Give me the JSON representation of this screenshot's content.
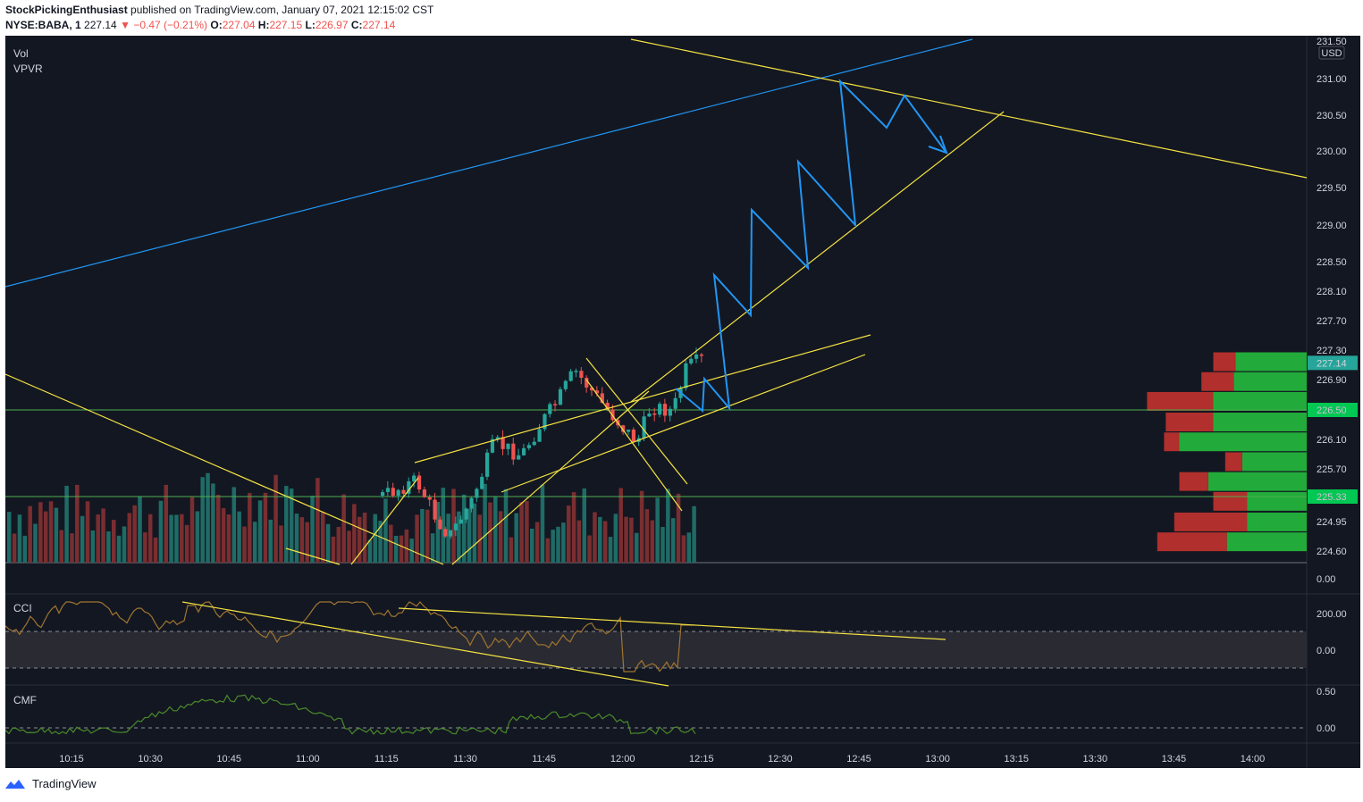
{
  "header": {
    "author": "StockPickingEnthusiast",
    "published": "published on TradingView.com, January 07, 2021 12:15:02 CST",
    "symbol": "NYSE:BABA, 1",
    "last": "227.14",
    "change": "−0.47 (−0.21%)",
    "o_label": "O:",
    "o": "227.04",
    "h_label": "H:",
    "h": "227.15",
    "l_label": "L:",
    "l": "226.97",
    "c_label": "C:",
    "c": "227.14"
  },
  "indicators": {
    "vol": "Vol",
    "vpvr": "VPVR",
    "cci": "CCI",
    "cmf": "CMF"
  },
  "currency": "USD",
  "footer": {
    "brand": "TradingView"
  },
  "colors": {
    "background": "#131722",
    "up": "#26a69a",
    "down": "#ef5350",
    "trend_yellow": "#f5e342",
    "trend_blue": "#2196f3",
    "level_green": "#4caf50",
    "cci_line": "#a07530",
    "cmf_line": "#4a8a2a"
  },
  "chart_data": [
    {
      "type": "candlestick",
      "x_ticks": [
        "10:15",
        "10:30",
        "10:45",
        "11:00",
        "11:15",
        "11:30",
        "11:45",
        "12:00",
        "12:15",
        "12:30",
        "12:45",
        "13:00",
        "13:15",
        "13:30",
        "13:45",
        "14:00"
      ],
      "y_ticks": [
        "231.50",
        "231.00",
        "230.50",
        "230.00",
        "229.50",
        "229.00",
        "228.50",
        "228.10",
        "227.70",
        "227.30",
        "226.90",
        "226.50",
        "226.10",
        "225.70",
        "225.33",
        "224.95",
        "224.60",
        "0.00"
      ],
      "last_price_label": "227.14",
      "horizontal_levels": [
        226.5,
        225.33
      ],
      "vpvr_rows": [
        {
          "price": 227.15,
          "up": 0.42,
          "down": 0.13
        },
        {
          "price": 226.88,
          "up": 0.43,
          "down": 0.19
        },
        {
          "price": 226.61,
          "up": 0.55,
          "down": 0.39
        },
        {
          "price": 226.33,
          "up": 0.55,
          "down": 0.28
        },
        {
          "price": 226.06,
          "up": 0.75,
          "down": 0.09
        },
        {
          "price": 225.79,
          "up": 0.38,
          "down": 0.1
        },
        {
          "price": 225.52,
          "up": 0.58,
          "down": 0.17
        },
        {
          "price": 225.25,
          "up": 0.35,
          "down": 0.2
        },
        {
          "price": 224.97,
          "up": 0.35,
          "down": 0.43
        },
        {
          "price": 224.7,
          "up": 0.47,
          "down": 0.41
        }
      ]
    },
    {
      "type": "line",
      "name": "CCI",
      "y_ticks": [
        "200.00",
        "0.00"
      ],
      "bands": [
        100,
        -100
      ]
    },
    {
      "type": "line",
      "name": "CMF",
      "y_ticks": [
        "0.50",
        "0.00"
      ]
    }
  ]
}
